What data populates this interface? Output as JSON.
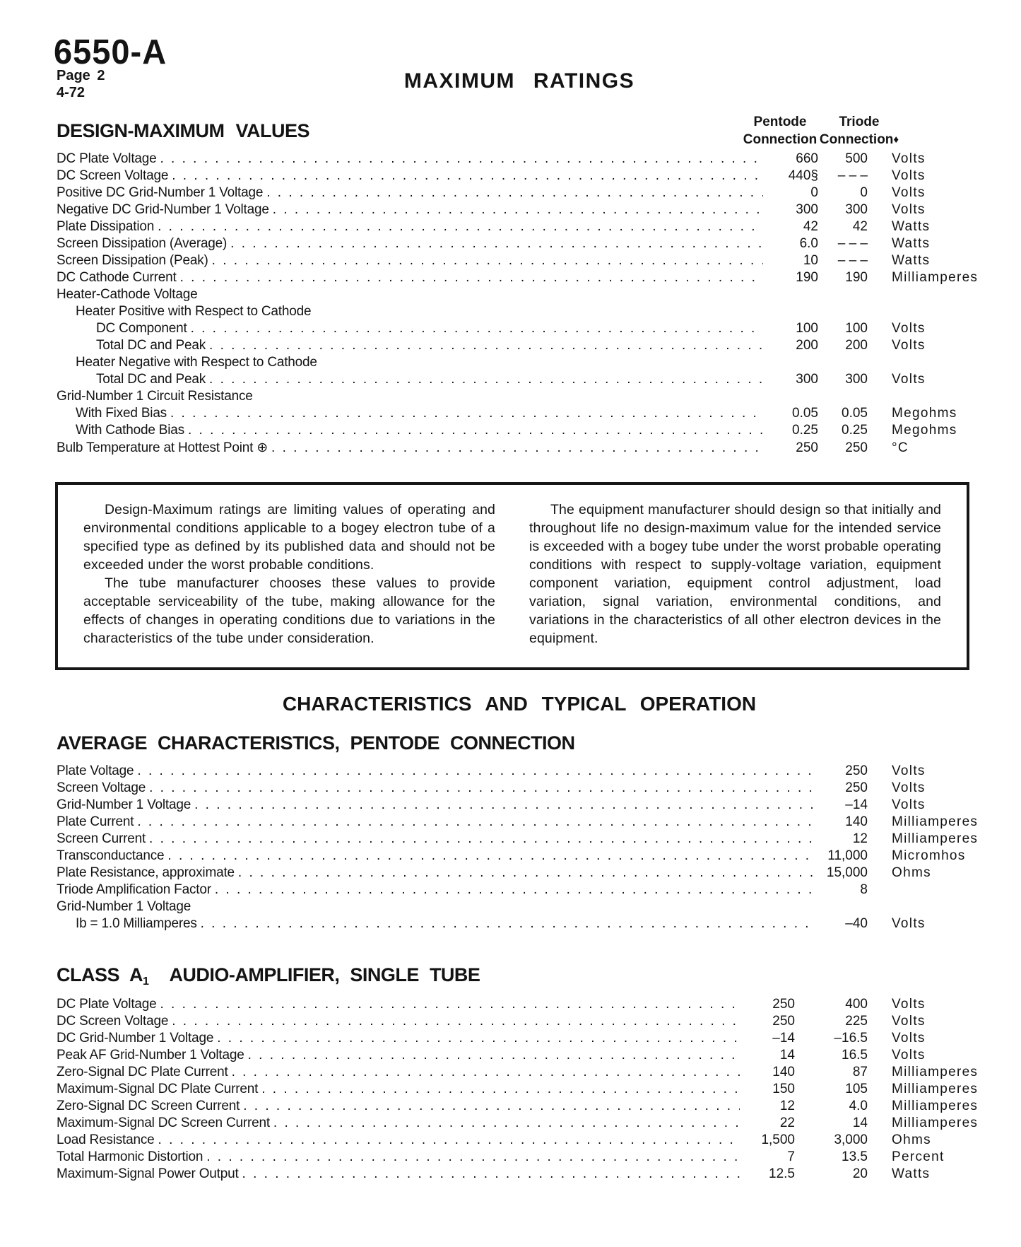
{
  "header": {
    "tube": "6550-A",
    "page": "Page 2",
    "date": "4-72",
    "title": "MAXIMUM RATINGS"
  },
  "design_max": {
    "title": "DESIGN-MAXIMUM VALUES",
    "columns": {
      "col1_line1": "Pentode",
      "col1_line2": "Connection",
      "col2_line1": "Triode",
      "col2_line2": "Connection",
      "col2_marker": "♦"
    },
    "rows": [
      {
        "label": "DC Plate Voltage",
        "v1": "660",
        "v2": "500",
        "unit": "Volts"
      },
      {
        "label": "DC Screen Voltage",
        "v1": "440§",
        "v2": "– – –",
        "unit": "Volts"
      },
      {
        "label": "Positive DC Grid-Number 1 Voltage",
        "v1": "0",
        "v2": "0",
        "unit": "Volts"
      },
      {
        "label": "Negative DC Grid-Number 1 Voltage",
        "v1": "300",
        "v2": "300",
        "unit": "Volts"
      },
      {
        "label": "Plate Dissipation",
        "v1": "42",
        "v2": "42",
        "unit": "Watts"
      },
      {
        "label": "Screen Dissipation (Average)",
        "v1": "6.0",
        "v2": "– – –",
        "unit": "Watts"
      },
      {
        "label": "Screen Dissipation (Peak)",
        "v1": "10",
        "v2": "– – –",
        "unit": "Watts"
      },
      {
        "label": "DC Cathode Current",
        "v1": "190",
        "v2": "190",
        "unit": "Milliamperes"
      },
      {
        "label": "Heater-Cathode Voltage",
        "header": true
      },
      {
        "label": "Heater Positive with Respect to Cathode",
        "indent": 1,
        "header": true
      },
      {
        "label": "DC Component",
        "indent": 2,
        "v1": "100",
        "v2": "100",
        "unit": "Volts"
      },
      {
        "label": "Total DC and Peak",
        "indent": 2,
        "v1": "200",
        "v2": "200",
        "unit": "Volts"
      },
      {
        "label": "Heater Negative with Respect to Cathode",
        "indent": 1,
        "header": true
      },
      {
        "label": "Total DC and Peak",
        "indent": 2,
        "v1": "300",
        "v2": "300",
        "unit": "Volts"
      },
      {
        "label": "Grid-Number 1 Circuit Resistance",
        "header": true
      },
      {
        "label": "With Fixed Bias",
        "indent": 1,
        "v1": "0.05",
        "v2": "0.05",
        "unit": "Megohms"
      },
      {
        "label": "With Cathode Bias",
        "indent": 1,
        "v1": "0.25",
        "v2": "0.25",
        "unit": "Megohms"
      },
      {
        "label": "Bulb Temperature at Hottest Point ⊕",
        "v1": "250",
        "v2": "250",
        "unit": "°C"
      }
    ]
  },
  "note_box": {
    "left": [
      "Design-Maximum ratings are limiting values of operating and environmental conditions applicable to a bogey electron tube of a specified type as defined by its published data and should not be exceeded under the worst probable conditions.",
      "The tube manufacturer chooses these values to provide acceptable serviceability of the tube, making allowance for the effects of changes in operating conditions due to variations in the characteristics of the tube under consideration."
    ],
    "right": [
      "The equipment manufacturer should design so that initially and throughout life no design-maximum value for the intended service is exceeded with a bogey tube under the worst probable operating conditions with respect to supply-voltage variation, equipment component variation, equipment control adjustment, load variation, signal variation, environmental conditions, and variations in the characteristics of all other electron devices in the equipment."
    ]
  },
  "sections": {
    "characteristics_title": "CHARACTERISTICS AND TYPICAL OPERATION"
  },
  "avg": {
    "title": "AVERAGE CHARACTERISTICS, PENTODE CONNECTION",
    "rows": [
      {
        "label": "Plate Voltage",
        "v2": "250",
        "unit": "Volts"
      },
      {
        "label": "Screen Voltage",
        "v2": "250",
        "unit": "Volts"
      },
      {
        "label": "Grid-Number 1 Voltage",
        "v2": "–14",
        "unit": "Volts"
      },
      {
        "label": "Plate Current",
        "v2": "140",
        "unit": "Milliamperes"
      },
      {
        "label": "Screen Current",
        "v2": "12",
        "unit": "Milliamperes"
      },
      {
        "label": "Transconductance",
        "v2": "11,000",
        "unit": "Micromhos"
      },
      {
        "label": "Plate Resistance, approximate",
        "v2": "15,000",
        "unit": "Ohms"
      },
      {
        "label": "Triode Amplification Factor",
        "v2": "8",
        "unit": ""
      },
      {
        "label": "Grid-Number 1 Voltage",
        "header": true
      },
      {
        "label": "Ib = 1.0 Milliamperes",
        "indent": 1,
        "v2": "–40",
        "unit": "Volts"
      }
    ]
  },
  "classa": {
    "title_pre": "CLASS A",
    "title_sub": "1",
    "title_post": "AUDIO-AMPLIFIER, SINGLE TUBE",
    "rows": [
      {
        "label": "DC Plate Voltage",
        "v1": "250",
        "v2": "400",
        "unit": "Volts"
      },
      {
        "label": "DC Screen Voltage",
        "v1": "250",
        "v2": "225",
        "unit": "Volts"
      },
      {
        "label": "DC Grid-Number 1 Voltage",
        "v1": "–14",
        "v2": "–16.5",
        "unit": "Volts"
      },
      {
        "label": "Peak AF Grid-Number 1 Voltage",
        "v1": "14",
        "v2": "16.5",
        "unit": "Volts"
      },
      {
        "label": "Zero-Signal DC Plate Current",
        "v1": "140",
        "v2": "87",
        "unit": "Milliamperes"
      },
      {
        "label": "Maximum-Signal DC Plate Current",
        "v1": "150",
        "v2": "105",
        "unit": "Milliamperes"
      },
      {
        "label": "Zero-Signal DC Screen Current",
        "v1": "12",
        "v2": "4.0",
        "unit": "Milliamperes"
      },
      {
        "label": "Maximum-Signal DC Screen Current",
        "v1": "22",
        "v2": "14",
        "unit": "Milliamperes"
      },
      {
        "label": "Load Resistance",
        "v1": "1,500",
        "v2": "3,000",
        "unit": "Ohms"
      },
      {
        "label": "Total Harmonic Distortion",
        "v1": "7",
        "v2": "13.5",
        "unit": "Percent"
      },
      {
        "label": "Maximum-Signal Power Output",
        "v1": "12.5",
        "v2": "20",
        "unit": "Watts"
      }
    ]
  }
}
